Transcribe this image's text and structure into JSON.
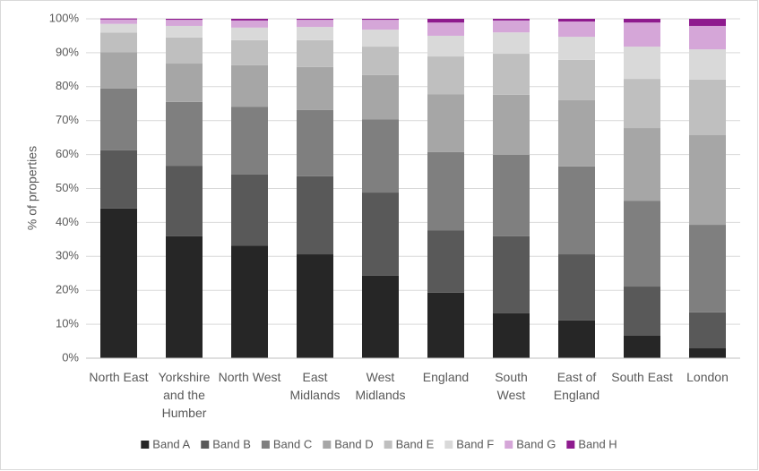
{
  "chart_data": {
    "type": "stacked_bar",
    "y_label": "% of properties",
    "categories": [
      "North East",
      "Yorkshire and the Humber",
      "North West",
      "East Midlands",
      "West Midlands",
      "England",
      "South West",
      "East of England",
      "South East",
      "London"
    ],
    "series": [
      {
        "name": "Band A",
        "color": "#262626",
        "values": [
          44.1,
          35.9,
          33.2,
          30.6,
          24.3,
          19.3,
          13.2,
          11.1,
          6.6,
          2.9
        ]
      },
      {
        "name": "Band B",
        "color": "#595959",
        "values": [
          17.2,
          20.8,
          20.9,
          23.0,
          24.5,
          18.4,
          22.7,
          19.5,
          14.5,
          10.6
        ]
      },
      {
        "name": "Band C",
        "color": "#7f7f7f",
        "values": [
          18.2,
          18.8,
          20.0,
          19.5,
          21.6,
          23.0,
          24.0,
          25.9,
          25.3,
          25.8
        ]
      },
      {
        "name": "Band D",
        "color": "#a6a6a6",
        "values": [
          10.6,
          11.3,
          12.2,
          12.7,
          13.0,
          17.1,
          17.7,
          19.5,
          21.4,
          26.4
        ]
      },
      {
        "name": "Band E",
        "color": "#bfbfbf",
        "values": [
          5.8,
          7.7,
          7.4,
          7.9,
          8.4,
          11.1,
          12.1,
          11.9,
          14.5,
          16.4
        ]
      },
      {
        "name": "Band F",
        "color": "#d9d9d9",
        "values": [
          2.6,
          3.4,
          3.7,
          3.9,
          5.0,
          6.1,
          6.3,
          6.8,
          9.5,
          8.9
        ]
      },
      {
        "name": "Band G",
        "color": "#d5a6d8",
        "values": [
          1.3,
          1.8,
          2.1,
          2.1,
          2.9,
          3.9,
          3.5,
          4.5,
          7.1,
          6.9
        ]
      },
      {
        "name": "Band H",
        "color": "#8e1a8e",
        "values": [
          0.3,
          0.3,
          0.5,
          0.3,
          0.3,
          1.1,
          0.5,
          0.8,
          1.1,
          2.1
        ]
      }
    ],
    "ylim": [
      0,
      100
    ],
    "yticks": [
      {
        "value": 0,
        "label": "0%"
      },
      {
        "value": 10,
        "label": "10%"
      },
      {
        "value": 20,
        "label": "20%"
      },
      {
        "value": 30,
        "label": "30%"
      },
      {
        "value": 40,
        "label": "40%"
      },
      {
        "value": 50,
        "label": "50%"
      },
      {
        "value": 60,
        "label": "60%"
      },
      {
        "value": 70,
        "label": "70%"
      },
      {
        "value": 80,
        "label": "80%"
      },
      {
        "value": 90,
        "label": "90%"
      },
      {
        "value": 100,
        "label": "100%"
      }
    ],
    "grid": true,
    "legend": "bottom"
  }
}
